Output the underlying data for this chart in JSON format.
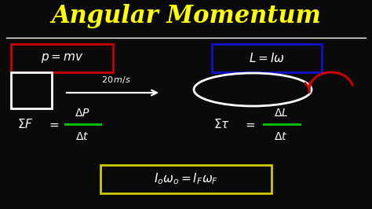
{
  "background_color": "#0a0a0a",
  "title": "Angular Momentum",
  "title_color": "#ffff00",
  "title_fontsize": 22,
  "separator_color": "#ffffff",
  "text_color": "#ffffff",
  "green_color": "#00bb00",
  "red_box_color": "#cc0000",
  "blue_box_color": "#1111cc",
  "yellow_box_color": "#cccc00",
  "red_arrow_color": "#cc0000",
  "fig_w": 4.74,
  "fig_h": 2.66,
  "dpi": 100
}
